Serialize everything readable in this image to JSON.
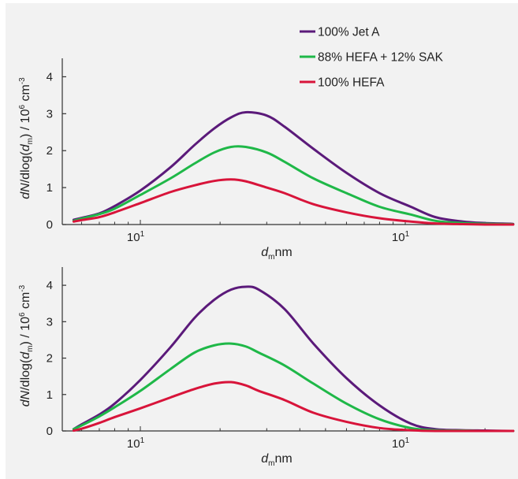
{
  "chart_data": [
    {
      "type": "line",
      "panel": "top",
      "ylabel": "dN/dlog(d_m) / 10^6 cm^-3",
      "xlabel": "d_m nm",
      "x_scale": "log",
      "x_tick_labels": [
        "10¹",
        "10¹"
      ],
      "y_ticks": [
        0,
        1,
        2,
        3,
        4
      ],
      "ylim": [
        0,
        4.5
      ],
      "series": [
        {
          "name": "100% Jet A",
          "color": "#5b1a7a",
          "x": [
            5.6,
            6,
            7,
            8,
            10,
            13,
            16,
            19,
            22,
            25,
            30,
            35,
            45,
            60,
            80,
            105,
            130,
            165,
            200,
            250,
            300
          ],
          "y": [
            0.13,
            0.18,
            0.3,
            0.5,
            0.92,
            1.55,
            2.15,
            2.6,
            2.9,
            3.04,
            2.95,
            2.65,
            2.05,
            1.4,
            0.85,
            0.48,
            0.2,
            0.08,
            0.04,
            0.02,
            0.01
          ]
        },
        {
          "name": "88% HEFA + 12% SAK",
          "color": "#1fb848",
          "x": [
            5.6,
            6,
            7,
            8,
            10,
            13,
            16,
            19,
            22,
            25,
            30,
            35,
            45,
            60,
            80,
            105,
            130,
            165,
            200,
            250,
            300
          ],
          "y": [
            0.1,
            0.16,
            0.28,
            0.43,
            0.8,
            1.25,
            1.65,
            1.95,
            2.1,
            2.1,
            1.95,
            1.7,
            1.25,
            0.85,
            0.48,
            0.27,
            0.1,
            0.04,
            0.02,
            0.01,
            0.0
          ]
        },
        {
          "name": "100% HEFA",
          "color": "#d8143a",
          "x": [
            5.6,
            6,
            7,
            8,
            10,
            13,
            16,
            19,
            22,
            25,
            30,
            35,
            45,
            60,
            80,
            105,
            130,
            165,
            200,
            250,
            300
          ],
          "y": [
            0.08,
            0.12,
            0.2,
            0.33,
            0.58,
            0.88,
            1.06,
            1.18,
            1.22,
            1.17,
            1.0,
            0.85,
            0.55,
            0.33,
            0.17,
            0.08,
            0.03,
            0.01,
            0.0,
            0.0,
            0.0
          ]
        }
      ],
      "legend": [
        "100% Jet A",
        "88% HEFA + 12% SAK",
        "100% HEFA"
      ],
      "legend_position": "top-right",
      "grid": false
    },
    {
      "type": "line",
      "panel": "bottom",
      "ylabel": "dN/dlog(d_m) / 10^6 cm^-3",
      "xlabel": "d_m nm",
      "x_scale": "log",
      "x_tick_labels": [
        "10¹",
        "10¹"
      ],
      "y_ticks": [
        0,
        1,
        2,
        3,
        4
      ],
      "ylim": [
        0,
        4.5
      ],
      "series": [
        {
          "name": "100% Jet A",
          "color": "#5b1a7a",
          "x": [
            5.6,
            6,
            7,
            8,
            10,
            13,
            16,
            19,
            22,
            25,
            28,
            35,
            45,
            60,
            80,
            105,
            130,
            165,
            200,
            250,
            300
          ],
          "y": [
            0.05,
            0.18,
            0.45,
            0.75,
            1.4,
            2.3,
            3.1,
            3.6,
            3.88,
            3.96,
            3.88,
            3.35,
            2.4,
            1.45,
            0.7,
            0.2,
            0.05,
            0.02,
            0.01,
            0.0,
            0.0
          ]
        },
        {
          "name": "88% HEFA + 12% SAK",
          "color": "#1fb848",
          "x": [
            5.6,
            6,
            7,
            8,
            10,
            13,
            16,
            19,
            22,
            25,
            28,
            35,
            45,
            60,
            80,
            105,
            130,
            165,
            200,
            250,
            300
          ],
          "y": [
            0.05,
            0.15,
            0.4,
            0.65,
            1.1,
            1.7,
            2.15,
            2.35,
            2.4,
            2.32,
            2.15,
            1.8,
            1.3,
            0.75,
            0.32,
            0.08,
            0.02,
            0.01,
            0.0,
            0.0,
            0.0
          ]
        },
        {
          "name": "100% HEFA",
          "color": "#d8143a",
          "x": [
            5.6,
            6,
            7,
            8,
            10,
            13,
            16,
            19,
            22,
            25,
            28,
            35,
            45,
            60,
            80,
            105,
            130,
            165,
            200,
            250,
            300
          ],
          "y": [
            0.01,
            0.06,
            0.22,
            0.38,
            0.62,
            0.92,
            1.15,
            1.3,
            1.34,
            1.25,
            1.1,
            0.85,
            0.5,
            0.25,
            0.08,
            0.02,
            0.0,
            0.0,
            0.0,
            0.0,
            0.0
          ]
        }
      ],
      "grid": false
    }
  ]
}
